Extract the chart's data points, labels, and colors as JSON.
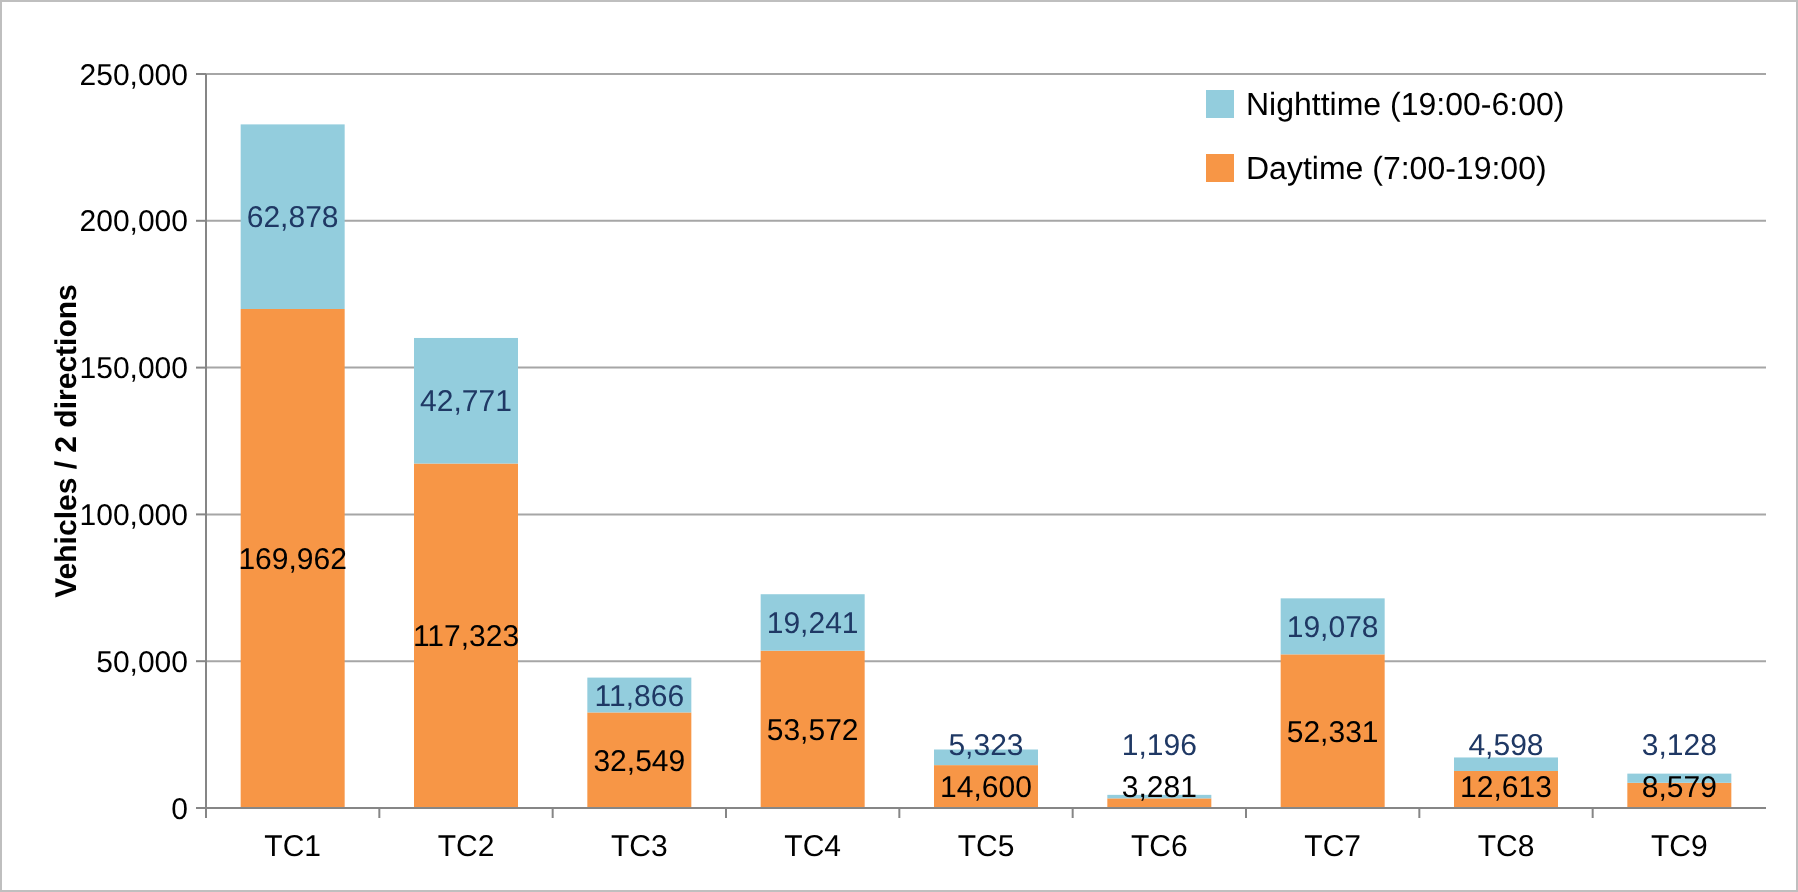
{
  "chart_data": {
    "type": "bar",
    "stacked": true,
    "ylabel": "Vehicles / 2 directions",
    "categories": [
      "TC1",
      "TC2",
      "TC3",
      "TC4",
      "TC5",
      "TC6",
      "TC7",
      "TC8",
      "TC9"
    ],
    "series": [
      {
        "name": "Daytime (7:00-19:00)",
        "color": "#f79646",
        "values": [
          169962,
          117323,
          32549,
          53572,
          14600,
          3281,
          52331,
          12613,
          8579
        ],
        "value_labels": [
          "169,962",
          "117,323",
          "32,549",
          "53,572",
          "14,600",
          "3,281",
          "52,331",
          "12,613",
          "8,579"
        ]
      },
      {
        "name": "Nighttime (19:00-6:00)",
        "color": "#93cddd",
        "values": [
          62878,
          42771,
          11866,
          19241,
          5323,
          1196,
          19078,
          4598,
          3128
        ],
        "value_labels": [
          "62,878",
          "42,771",
          "11,866",
          "19,241",
          "5,323",
          "1,196",
          "19,078",
          "4,598",
          "3,128"
        ]
      }
    ],
    "ylim": [
      0,
      250000
    ],
    "yticks": [
      {
        "value": 0,
        "label": "0"
      },
      {
        "value": 50000,
        "label": "50,000"
      },
      {
        "value": 100000,
        "label": "100,000"
      },
      {
        "value": 150000,
        "label": "150,000"
      },
      {
        "value": 200000,
        "label": "200,000"
      },
      {
        "value": 250000,
        "label": "250,000"
      }
    ],
    "grid": "y",
    "legend": "top right"
  }
}
